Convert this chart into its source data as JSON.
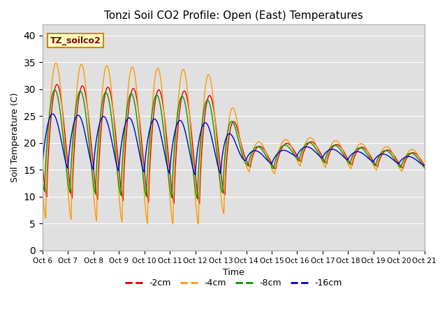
{
  "title": "Tonzi Soil CO2 Profile: Open (East) Temperatures",
  "xlabel": "Time",
  "ylabel": "Soil Temperature (C)",
  "ylim": [
    0,
    42
  ],
  "yticks": [
    0,
    5,
    10,
    15,
    20,
    25,
    30,
    35,
    40
  ],
  "legend_label": "TZ_soilco2",
  "series_labels": [
    "-2cm",
    "-4cm",
    "-8cm",
    "-16cm"
  ],
  "series_colors": [
    "#dd0000",
    "#ff9900",
    "#009900",
    "#0000cc"
  ],
  "bg_color": "#e0e0e0",
  "fig_bg": "#ffffff",
  "x_tick_labels": [
    "Oct 6",
    "Oct 7",
    "Oct 8",
    "Oct 9",
    "Oct 10",
    "Oct 11",
    "Oct 12",
    "Oct 13",
    "Oct 14",
    "Oct 15",
    "Oct 16",
    "Oct 17",
    "Oct 18",
    "Oct 19",
    "Oct 20",
    "Oct 21"
  ],
  "x_tick_positions": [
    0,
    24,
    48,
    72,
    96,
    120,
    144,
    168,
    192,
    216,
    240,
    264,
    288,
    312,
    336,
    360
  ]
}
